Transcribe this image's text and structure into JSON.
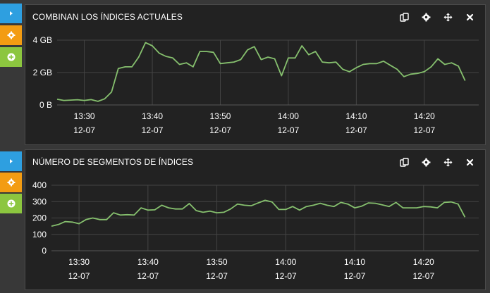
{
  "colors": {
    "blue": "#2e9fe0",
    "orange": "#f39c12",
    "green": "#8cc63f",
    "line": "#86c06e",
    "grid": "#444444",
    "panel": "#222222"
  },
  "sidebar_buttons": [
    {
      "icon": "play-right-icon",
      "color": "#2e9fe0"
    },
    {
      "icon": "gear-icon",
      "color": "#f39c12"
    },
    {
      "icon": "plus-circle-icon",
      "color": "#8cc63f"
    }
  ],
  "panel_tools": [
    "copy-icon",
    "gear-icon",
    "move-icon",
    "close-icon"
  ],
  "panels": [
    {
      "title": "COMBINAN LOS ÍNDICES ACTUALES",
      "chart_data": {
        "type": "line",
        "ylabel": "",
        "y_unit": "GB",
        "ylim": [
          0,
          4
        ],
        "y_ticks": [
          {
            "value": 4,
            "label": "4 GB"
          },
          {
            "value": 2,
            "label": "2 GB"
          },
          {
            "value": 0,
            "label": "0 B"
          }
        ],
        "x_ticks": [
          {
            "time": "13:30",
            "date": "12-07"
          },
          {
            "time": "13:40",
            "date": "12-07"
          },
          {
            "time": "13:50",
            "date": "12-07"
          },
          {
            "time": "14:00",
            "date": "12-07"
          },
          {
            "time": "14:10",
            "date": "12-07"
          },
          {
            "time": "14:20",
            "date": "12-07"
          }
        ],
        "x_minutes_range": [
          "13:26",
          "14:28"
        ],
        "series": [
          {
            "values": [
              [
                "13:26",
                0.35
              ],
              [
                "13:27",
                0.28
              ],
              [
                "13:28",
                0.3
              ],
              [
                "13:29",
                0.32
              ],
              [
                "13:30",
                0.28
              ],
              [
                "13:31",
                0.33
              ],
              [
                "13:32",
                0.22
              ],
              [
                "13:33",
                0.38
              ],
              [
                "13:34",
                0.8
              ],
              [
                "13:35",
                2.25
              ],
              [
                "13:36",
                2.35
              ],
              [
                "13:37",
                2.35
              ],
              [
                "13:38",
                2.95
              ],
              [
                "13:39",
                3.85
              ],
              [
                "13:40",
                3.65
              ],
              [
                "13:41",
                3.2
              ],
              [
                "13:42",
                3.0
              ],
              [
                "13:43",
                2.9
              ],
              [
                "13:44",
                2.5
              ],
              [
                "13:45",
                2.6
              ],
              [
                "13:46",
                2.35
              ],
              [
                "13:47",
                3.3
              ],
              [
                "13:48",
                3.3
              ],
              [
                "13:49",
                3.25
              ],
              [
                "13:50",
                2.55
              ],
              [
                "13:51",
                2.6
              ],
              [
                "13:52",
                2.65
              ],
              [
                "13:53",
                2.8
              ],
              [
                "13:54",
                3.4
              ],
              [
                "13:55",
                3.6
              ],
              [
                "13:56",
                2.8
              ],
              [
                "13:57",
                2.95
              ],
              [
                "13:58",
                2.85
              ],
              [
                "13:59",
                1.8
              ],
              [
                "14:00",
                2.9
              ],
              [
                "14:01",
                2.9
              ],
              [
                "14:02",
                3.65
              ],
              [
                "14:03",
                3.1
              ],
              [
                "14:04",
                3.3
              ],
              [
                "14:05",
                2.65
              ],
              [
                "14:06",
                2.6
              ],
              [
                "14:07",
                2.65
              ],
              [
                "14:08",
                2.2
              ],
              [
                "14:09",
                2.05
              ],
              [
                "14:10",
                2.3
              ],
              [
                "14:11",
                2.5
              ],
              [
                "14:12",
                2.55
              ],
              [
                "14:13",
                2.55
              ],
              [
                "14:14",
                2.7
              ],
              [
                "14:15",
                2.45
              ],
              [
                "14:16",
                2.2
              ],
              [
                "14:17",
                1.75
              ],
              [
                "14:18",
                1.9
              ],
              [
                "14:19",
                1.95
              ],
              [
                "14:20",
                2.05
              ],
              [
                "14:21",
                2.35
              ],
              [
                "14:22",
                2.85
              ],
              [
                "14:23",
                2.5
              ],
              [
                "14:24",
                2.6
              ],
              [
                "14:25",
                2.4
              ],
              [
                "14:26",
                1.5
              ]
            ]
          }
        ]
      }
    },
    {
      "title": "NÚMERO DE SEGMENTOS DE ÍNDICES",
      "chart_data": {
        "type": "line",
        "ylabel": "",
        "ylim": [
          0,
          400
        ],
        "y_ticks": [
          {
            "value": 400,
            "label": "400"
          },
          {
            "value": 300,
            "label": "300"
          },
          {
            "value": 200,
            "label": "200"
          },
          {
            "value": 100,
            "label": "100"
          },
          {
            "value": 0,
            "label": "0"
          }
        ],
        "x_ticks": [
          {
            "time": "13:30",
            "date": "12-07"
          },
          {
            "time": "13:40",
            "date": "12-07"
          },
          {
            "time": "13:50",
            "date": "12-07"
          },
          {
            "time": "14:00",
            "date": "12-07"
          },
          {
            "time": "14:10",
            "date": "12-07"
          },
          {
            "time": "14:20",
            "date": "12-07"
          }
        ],
        "x_minutes_range": [
          "13:26",
          "14:28"
        ],
        "series": [
          {
            "values": [
              [
                "13:26",
                150
              ],
              [
                "13:27",
                160
              ],
              [
                "13:28",
                178
              ],
              [
                "13:29",
                175
              ],
              [
                "13:30",
                165
              ],
              [
                "13:31",
                190
              ],
              [
                "13:32",
                200
              ],
              [
                "13:33",
                190
              ],
              [
                "13:34",
                190
              ],
              [
                "13:35",
                232
              ],
              [
                "13:36",
                218
              ],
              [
                "13:37",
                220
              ],
              [
                "13:38",
                218
              ],
              [
                "13:39",
                262
              ],
              [
                "13:40",
                248
              ],
              [
                "13:41",
                250
              ],
              [
                "13:42",
                278
              ],
              [
                "13:43",
                262
              ],
              [
                "13:44",
                255
              ],
              [
                "13:45",
                255
              ],
              [
                "13:46",
                288
              ],
              [
                "13:47",
                245
              ],
              [
                "13:48",
                235
              ],
              [
                "13:49",
                242
              ],
              [
                "13:50",
                232
              ],
              [
                "13:51",
                235
              ],
              [
                "13:52",
                255
              ],
              [
                "13:53",
                285
              ],
              [
                "13:54",
                278
              ],
              [
                "13:55",
                275
              ],
              [
                "13:56",
                292
              ],
              [
                "13:57",
                308
              ],
              [
                "13:58",
                298
              ],
              [
                "13:59",
                252
              ],
              [
                "14:00",
                252
              ],
              [
                "14:01",
                270
              ],
              [
                "14:02",
                248
              ],
              [
                "14:03",
                270
              ],
              [
                "14:04",
                278
              ],
              [
                "14:05",
                290
              ],
              [
                "14:06",
                278
              ],
              [
                "14:07",
                270
              ],
              [
                "14:08",
                295
              ],
              [
                "14:09",
                285
              ],
              [
                "14:10",
                262
              ],
              [
                "14:11",
                272
              ],
              [
                "14:12",
                292
              ],
              [
                "14:13",
                290
              ],
              [
                "14:14",
                280
              ],
              [
                "14:15",
                270
              ],
              [
                "14:16",
                295
              ],
              [
                "14:17",
                262
              ],
              [
                "14:18",
                262
              ],
              [
                "14:19",
                262
              ],
              [
                "14:20",
                270
              ],
              [
                "14:21",
                268
              ],
              [
                "14:22",
                262
              ],
              [
                "14:23",
                295
              ],
              [
                "14:24",
                298
              ],
              [
                "14:25",
                285
              ],
              [
                "14:26",
                205
              ]
            ]
          }
        ]
      }
    }
  ]
}
